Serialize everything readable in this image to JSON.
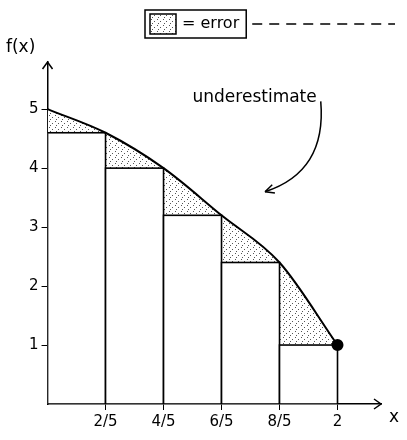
{
  "chart_data": {
    "type": "line",
    "x": [
      0,
      0.4,
      0.8,
      1.2,
      1.6,
      2
    ],
    "values": [
      5,
      4.6,
      4.0,
      3.2,
      2.4,
      1.0
    ],
    "x_label": "x",
    "y_label": "f(x)",
    "annotations": [
      "underestimate",
      "= error"
    ],
    "xlim": [
      0,
      2.3
    ],
    "ylim": [
      0,
      5.8
    ],
    "xticks": [
      {
        "value": 0.4,
        "label": "2/5"
      },
      {
        "value": 0.8,
        "label": "4/5"
      },
      {
        "value": 1.2,
        "label": "6/5"
      },
      {
        "value": 1.6,
        "label": "8/5"
      },
      2
    ],
    "yticks": [
      1,
      2,
      3,
      4,
      5
    ],
    "color": "#000000",
    "grid": false
  }
}
